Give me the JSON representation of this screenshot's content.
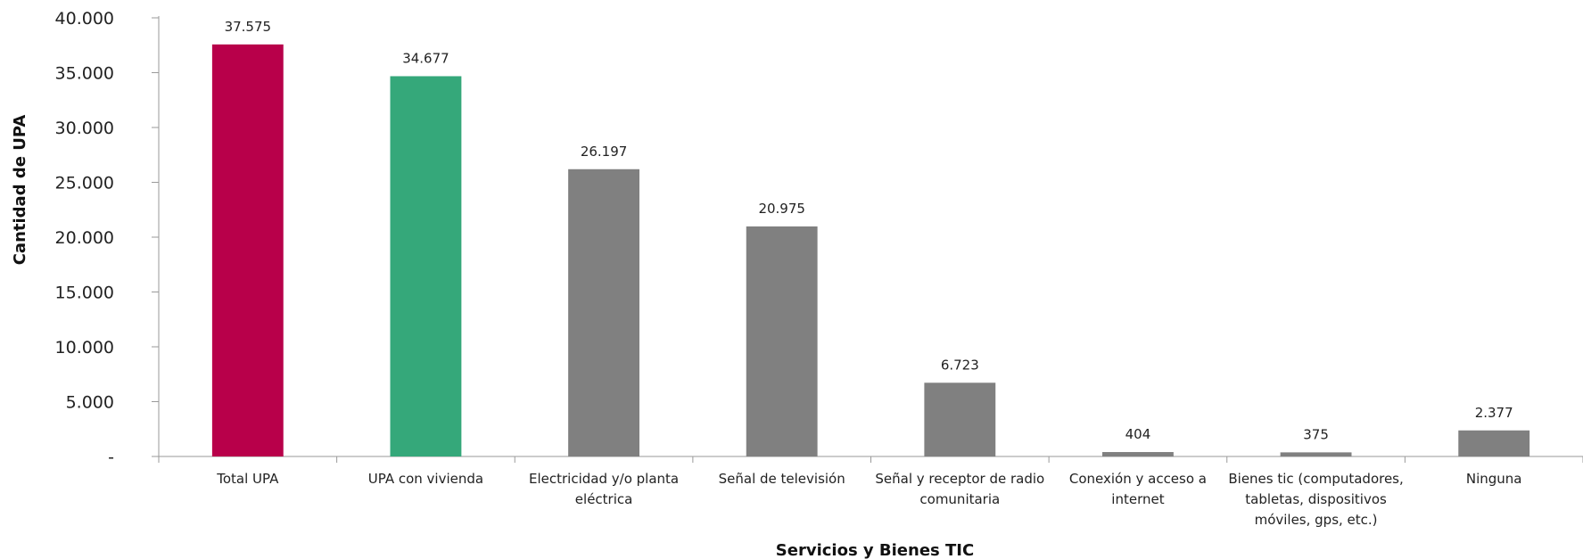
{
  "chart_data": {
    "type": "bar",
    "xlabel": "Servicios y Bienes TIC",
    "ylabel": "Cantidad de UPA",
    "ylim": [
      0,
      40000
    ],
    "yticks": [
      0,
      5000,
      10000,
      15000,
      20000,
      25000,
      30000,
      35000,
      40000
    ],
    "ytick_labels": [
      "-",
      "5.000",
      "10.000",
      "15.000",
      "20.000",
      "25.000",
      "30.000",
      "35.000",
      "40.000"
    ],
    "grid": false,
    "categories": [
      [
        "Total UPA"
      ],
      [
        "UPA con vivienda"
      ],
      [
        "Electricidad y/o planta",
        "eléctrica"
      ],
      [
        "Señal de televisión"
      ],
      [
        "Señal y receptor de radio",
        "comunitaria"
      ],
      [
        "Conexión y acceso a",
        "internet"
      ],
      [
        "Bienes tic (computadores,",
        "tabletas, dispositivos",
        "móviles, gps, etc.)"
      ],
      [
        "Ninguna"
      ]
    ],
    "values": [
      37575,
      34677,
      26197,
      20975,
      6723,
      404,
      375,
      2377
    ],
    "value_labels": [
      "37.575",
      "34.677",
      "26.197",
      "20.975",
      "6.723",
      "404",
      "375",
      "2.377"
    ],
    "colors": [
      "#b8004a",
      "#35a87a",
      "#808080",
      "#808080",
      "#808080",
      "#808080",
      "#808080",
      "#808080"
    ]
  }
}
